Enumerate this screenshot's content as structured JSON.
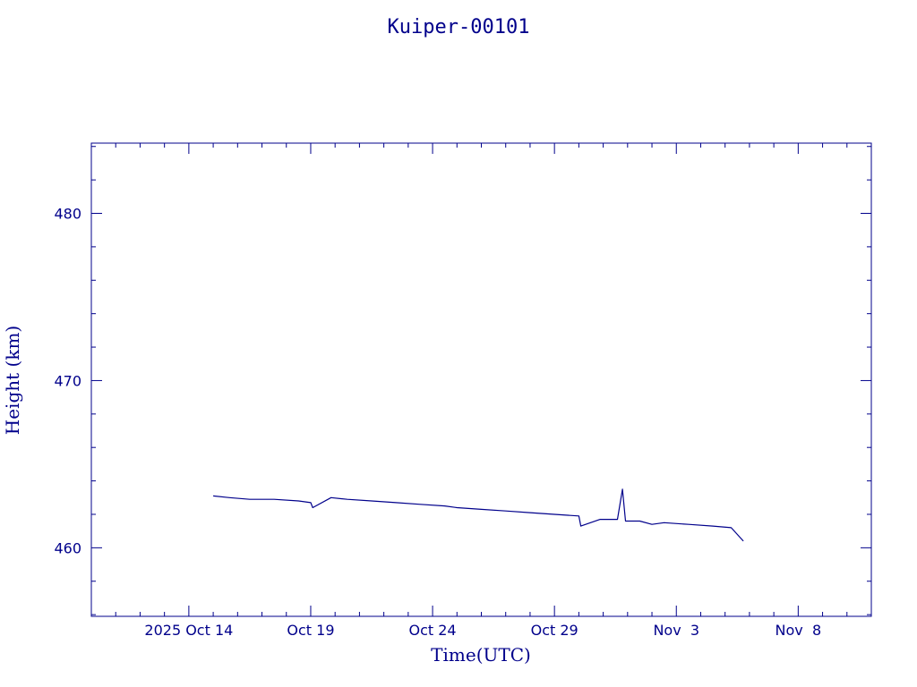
{
  "colors": {
    "ink": "#00008b",
    "background": "#ffffff"
  },
  "chart_data": {
    "type": "line",
    "title": "Kuiper-00101",
    "xlabel": "Time(UTC)",
    "ylabel": "Height (km)",
    "x_unit": "date (UTC, 2025)",
    "xlim": [
      "2025-10-10T00:00",
      "2025-11-11T00:00"
    ],
    "ylim": [
      455.9,
      484.2
    ],
    "grid": false,
    "x_ticks": [
      {
        "value": "2025-10-14",
        "label": "2025 Oct 14"
      },
      {
        "value": "2025-10-19",
        "label": "Oct 19"
      },
      {
        "value": "2025-10-24",
        "label": "Oct 24"
      },
      {
        "value": "2025-10-29",
        "label": "Oct 29"
      },
      {
        "value": "2025-11-03",
        "label": "Nov  3"
      },
      {
        "value": "2025-11-08",
        "label": "Nov  8"
      }
    ],
    "y_ticks": [
      460,
      470,
      480
    ],
    "series": [
      {
        "points": [
          [
            "2025-10-15T00:00",
            463.1
          ],
          [
            "2025-10-15T16:00",
            463.0
          ],
          [
            "2025-10-16T12:00",
            462.9
          ],
          [
            "2025-10-17T12:00",
            462.9
          ],
          [
            "2025-10-18T12:00",
            462.8
          ],
          [
            "2025-10-19T00:00",
            462.7
          ],
          [
            "2025-10-19T02:00",
            462.4
          ],
          [
            "2025-10-19T20:00",
            463.0
          ],
          [
            "2025-10-20T12:00",
            462.9
          ],
          [
            "2025-10-21T12:00",
            462.8
          ],
          [
            "2025-10-22T12:00",
            462.7
          ],
          [
            "2025-10-23T12:00",
            462.6
          ],
          [
            "2025-10-24T12:00",
            462.5
          ],
          [
            "2025-10-25T00:00",
            462.4
          ],
          [
            "2025-10-26T00:00",
            462.3
          ],
          [
            "2025-10-27T00:00",
            462.2
          ],
          [
            "2025-10-28T00:00",
            462.1
          ],
          [
            "2025-10-29T00:00",
            462.0
          ],
          [
            "2025-10-30T00:00",
            461.9
          ],
          [
            "2025-10-30T02:00",
            461.3
          ],
          [
            "2025-10-30T21:00",
            461.7
          ],
          [
            "2025-10-31T14:00",
            461.7
          ],
          [
            "2025-10-31T19:00",
            463.5
          ],
          [
            "2025-10-31T22:00",
            461.6
          ],
          [
            "2025-11-01T12:00",
            461.6
          ],
          [
            "2025-11-02T00:00",
            461.4
          ],
          [
            "2025-11-02T12:00",
            461.5
          ],
          [
            "2025-11-03T12:00",
            461.4
          ],
          [
            "2025-11-04T12:00",
            461.3
          ],
          [
            "2025-11-05T06:00",
            461.2
          ],
          [
            "2025-11-05T18:00",
            460.4
          ]
        ]
      }
    ]
  }
}
